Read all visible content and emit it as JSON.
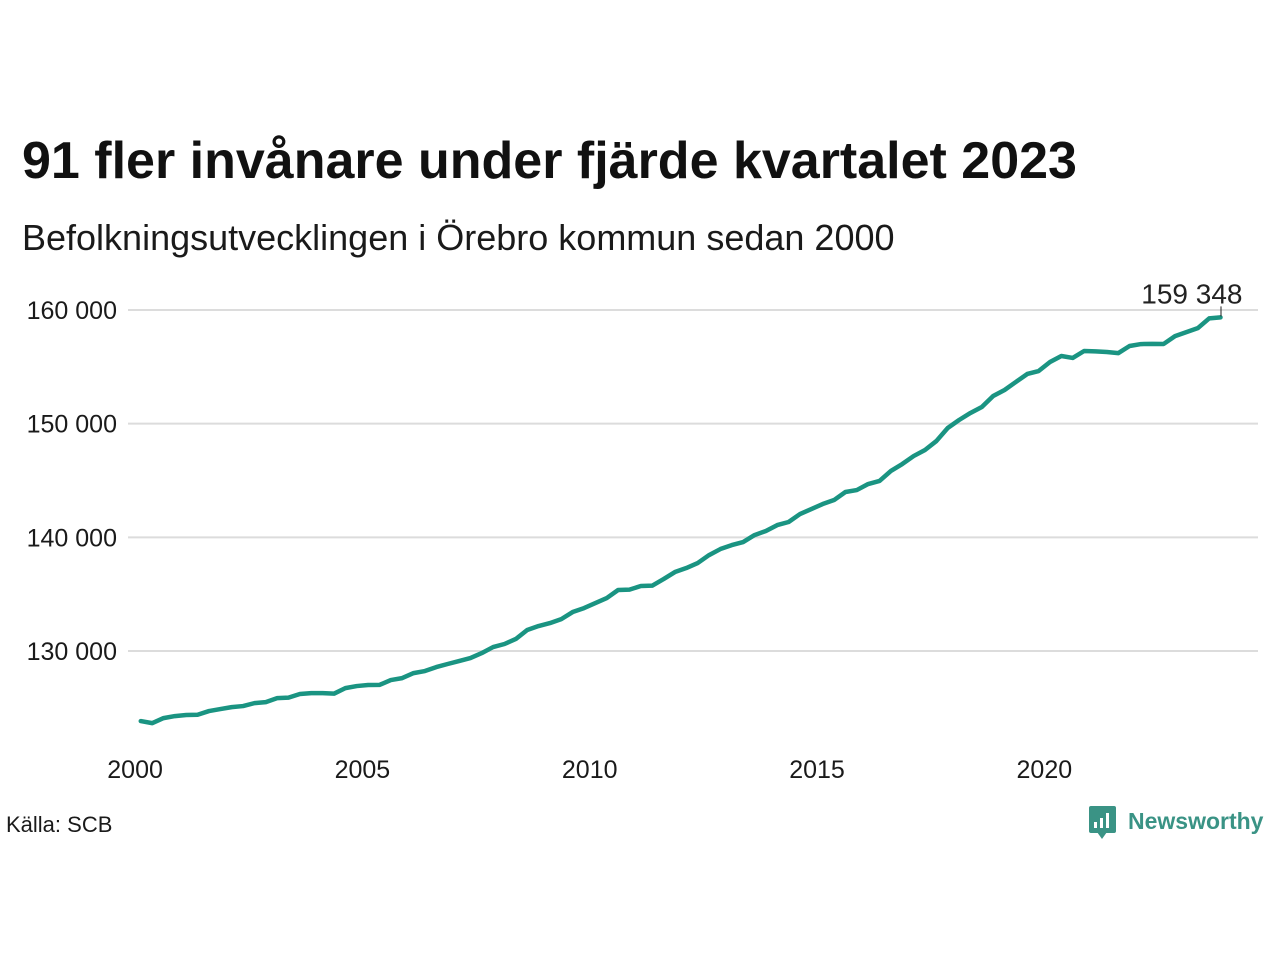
{
  "source": "Källa: SCB",
  "brand": {
    "name": "Newsworthy",
    "icon": "newsworthy-bar-chart-bubble-icon"
  },
  "colors": {
    "line": "#1a9482",
    "brand": "#3a9385",
    "grid": "#dcdcdc",
    "text": "#1a1a1a",
    "annotation": "#222222"
  },
  "chart_data": {
    "type": "line",
    "title": "91 fler invånare under fjärde kvartalet 2023",
    "subtitle": "Befolkningsutvecklingen i Örebro kommun sedan 2000",
    "xlabel": "",
    "ylabel": "",
    "xlim": [
      1999.8,
      2024.7
    ],
    "ylim": [
      122000,
      161000
    ],
    "x_ticks": [
      2000,
      2005,
      2010,
      2015,
      2020
    ],
    "x_tick_labels": [
      "2000",
      "2005",
      "2010",
      "2015",
      "2020"
    ],
    "y_ticks": [
      130000,
      140000,
      150000,
      160000
    ],
    "y_tick_labels": [
      "130 000",
      "140 000",
      "150 000",
      "160 000"
    ],
    "grid": "horizontal",
    "legend": "none",
    "series": [
      {
        "x": [
          2000.125,
          2000.375,
          2000.625,
          2000.875,
          2001.125,
          2001.375,
          2001.625,
          2001.875,
          2002.125,
          2002.375,
          2002.625,
          2002.875,
          2003.125,
          2003.375,
          2003.625,
          2003.875,
          2004.125,
          2004.375,
          2004.625,
          2004.875,
          2005.125,
          2005.375,
          2005.625,
          2005.875,
          2006.125,
          2006.375,
          2006.625,
          2006.875,
          2007.125,
          2007.375,
          2007.625,
          2007.875,
          2008.125,
          2008.375,
          2008.625,
          2008.875,
          2009.125,
          2009.375,
          2009.625,
          2009.875,
          2010.125,
          2010.375,
          2010.625,
          2010.875,
          2011.125,
          2011.375,
          2011.625,
          2011.875,
          2012.125,
          2012.375,
          2012.625,
          2012.875,
          2013.125,
          2013.375,
          2013.625,
          2013.875,
          2014.125,
          2014.375,
          2014.625,
          2014.875,
          2015.125,
          2015.375,
          2015.625,
          2015.875,
          2016.125,
          2016.375,
          2016.625,
          2016.875,
          2017.125,
          2017.375,
          2017.625,
          2017.875,
          2018.125,
          2018.375,
          2018.625,
          2018.875,
          2019.125,
          2019.375,
          2019.625,
          2019.875,
          2020.125,
          2020.375,
          2020.625,
          2020.875,
          2021.125,
          2021.375,
          2021.625,
          2021.875,
          2022.125,
          2022.375,
          2022.625,
          2022.875,
          2023.125,
          2023.375,
          2023.625,
          2023.875
        ],
        "y": [
          123840,
          123660,
          124100,
          124280,
          124370,
          124400,
          124720,
          124900,
          125070,
          125160,
          125420,
          125510,
          125860,
          125900,
          126220,
          126300,
          126300,
          126250,
          126740,
          126920,
          127010,
          127020,
          127450,
          127620,
          128060,
          128240,
          128590,
          128860,
          129120,
          129380,
          129820,
          130350,
          130620,
          131060,
          131850,
          132200,
          132460,
          132810,
          133430,
          133780,
          134220,
          134660,
          135370,
          135400,
          135720,
          135750,
          136330,
          136950,
          137300,
          137740,
          138440,
          138970,
          139320,
          139590,
          140200,
          140560,
          141080,
          141350,
          142050,
          142490,
          142930,
          143280,
          143990,
          144160,
          144690,
          144960,
          145840,
          146450,
          147150,
          147680,
          148470,
          149620,
          150320,
          150940,
          151470,
          152430,
          152960,
          153670,
          154370,
          154630,
          155420,
          155950,
          155780,
          156390,
          156360,
          156300,
          156200,
          156830,
          157000,
          157020,
          157010,
          157700,
          158050,
          158400,
          159257,
          159348
        ]
      }
    ],
    "annotations": [
      {
        "x": 2023.875,
        "y": 159348,
        "label": "159 348"
      }
    ]
  }
}
